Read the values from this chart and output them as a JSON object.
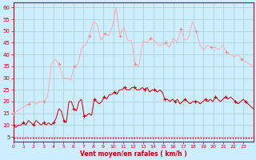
{
  "xlabel": "Vent moyen/en rafales ( km/h )",
  "bg_color": "#cceeff",
  "grid_color": "#aacccc",
  "line_color_mean": "#cc0000",
  "line_color_gust": "#ffaaaa",
  "marker_color_mean": "#cc0000",
  "marker_color_gust": "#ee8888",
  "arrow_color": "#cc0000",
  "xlabel_color": "#cc0000",
  "tick_color": "#cc0000",
  "spine_color": "#cc0000",
  "ylim": [
    3,
    62
  ],
  "xlim": [
    0,
    24
  ],
  "yticks": [
    5,
    10,
    15,
    20,
    25,
    30,
    35,
    40,
    45,
    50,
    55,
    60
  ],
  "xticks": [
    0,
    1,
    2,
    3,
    4,
    5,
    6,
    7,
    8,
    9,
    10,
    11,
    12,
    13,
    14,
    15,
    16,
    17,
    18,
    19,
    20,
    21,
    22,
    23
  ],
  "mean_y": [
    10,
    9,
    10,
    10,
    11,
    10,
    12,
    11,
    10,
    12,
    11,
    10,
    11,
    10,
    11,
    10,
    11,
    13,
    17,
    16,
    12,
    11,
    20,
    20,
    17,
    16,
    20,
    21,
    14,
    14,
    15,
    14,
    21,
    20,
    19,
    20,
    22,
    21,
    23,
    23,
    24,
    23,
    25,
    25,
    26,
    25,
    25,
    26,
    26,
    25,
    25,
    26,
    25,
    26,
    24,
    25,
    25,
    24,
    25,
    24,
    21,
    21,
    20,
    21,
    20,
    21,
    19,
    20,
    21,
    20,
    19,
    20,
    20,
    20,
    19,
    20,
    21,
    20,
    21,
    20,
    22,
    21,
    20,
    21,
    22,
    21,
    22,
    21,
    20,
    19,
    20,
    21,
    20,
    19,
    18,
    17
  ],
  "gust_y": [
    15,
    16,
    17,
    18,
    19,
    20,
    19,
    20,
    20,
    22,
    36,
    38,
    36,
    30,
    30,
    29,
    35,
    36,
    43,
    44,
    48,
    54,
    53,
    46,
    49,
    48,
    52,
    60,
    48,
    52,
    46,
    46,
    36,
    35,
    46,
    45,
    47,
    46,
    44,
    44,
    45,
    43,
    47,
    45,
    51,
    46,
    47,
    54,
    50,
    44,
    42,
    44,
    43,
    43,
    42,
    44,
    41,
    40,
    39,
    40,
    38,
    37,
    36,
    35
  ],
  "num_mean_pts": 96,
  "num_gust_pts": 64,
  "marker_every_mean": 4,
  "marker_every_gust": 4
}
